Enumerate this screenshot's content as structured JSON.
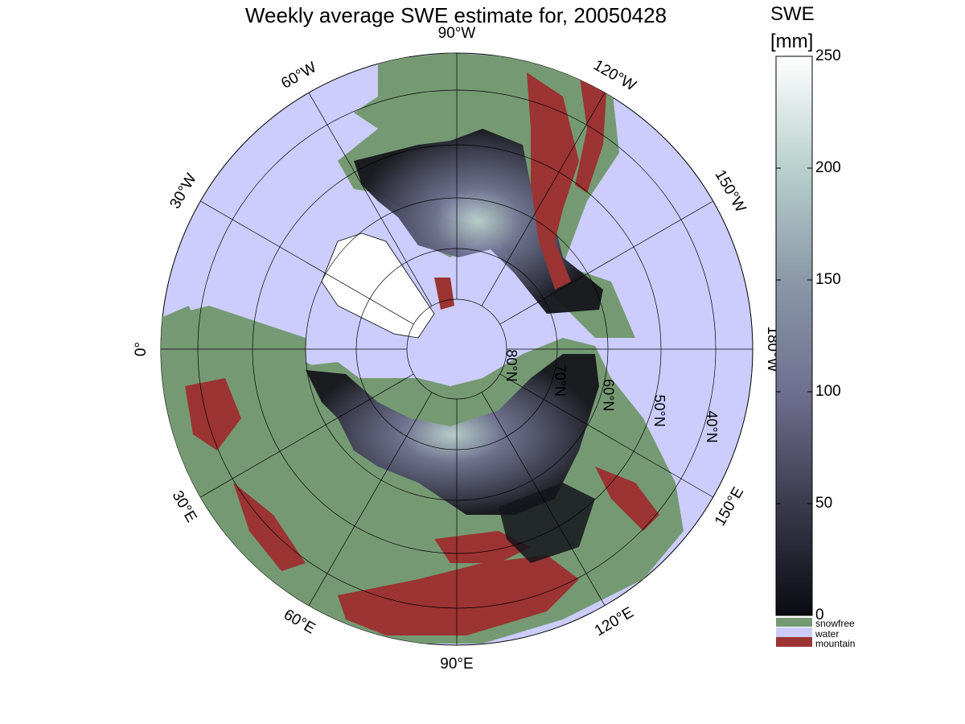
{
  "title": "Weekly average SWE estimate for, 20050428",
  "colorbar": {
    "title": "SWE",
    "unit": "[mm]",
    "ticks": [
      "0",
      "50",
      "100",
      "150",
      "200",
      "250"
    ],
    "range": [
      0,
      250
    ],
    "gradient": [
      "#0b0b12",
      "#3b3b4e",
      "#6f7090",
      "#8a98a8",
      "#b8d0cc",
      "#ffffff"
    ]
  },
  "legend": [
    {
      "label": "snowfree",
      "color": "#759a73"
    },
    {
      "label": "water",
      "color": "#cccdfd"
    },
    {
      "label": "mountain",
      "color": "#9b3433"
    }
  ],
  "map": {
    "projection": "north polar stereographic",
    "ocean_color": "#cccdfd",
    "land_color": "#759a73",
    "mountain_color": "#9b3433",
    "longitude_labels": [
      "90°W",
      "120°W",
      "150°W",
      "180°W",
      "150°E",
      "120°E",
      "90°E",
      "60°E",
      "30°E",
      "0°",
      "30°W",
      "60°W"
    ],
    "latitude_labels": [
      "80°N",
      "70°N",
      "60°N",
      "50°N",
      "40°N"
    ]
  }
}
